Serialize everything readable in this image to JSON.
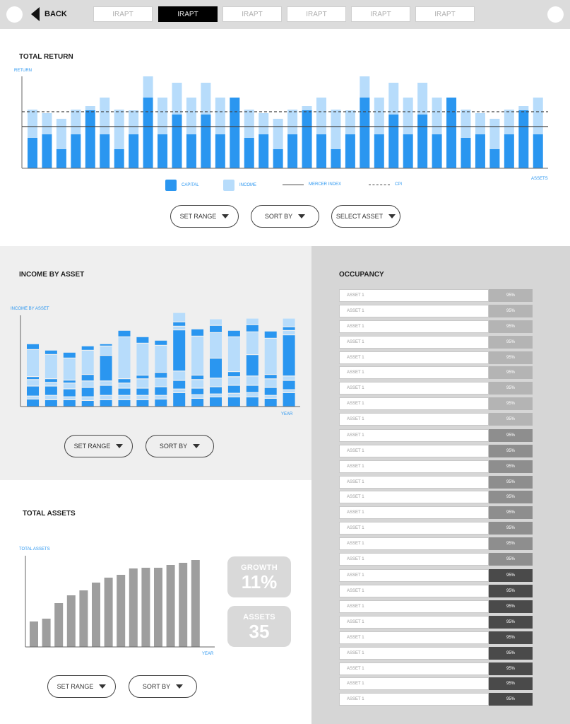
{
  "nav": {
    "back_label": "BACK",
    "tabs": [
      {
        "label": "IRAPT",
        "active": false
      },
      {
        "label": "IRAPT",
        "active": true
      },
      {
        "label": "IRAPT",
        "active": false
      },
      {
        "label": "IRAPT",
        "active": false
      },
      {
        "label": "IRAPT",
        "active": false
      },
      {
        "label": "IRAPT",
        "active": false
      }
    ]
  },
  "total_return": {
    "title": "TOTAL RETURN",
    "legend": {
      "capital": "CAPITAL",
      "income": "INCOME",
      "mercer": "MERCER INDEX",
      "cpi": "CPI"
    },
    "controls": {
      "set_range": "SET RANGE",
      "sort_by": "SORT BY",
      "select_asset": "SELECT ASSET"
    }
  },
  "income_by_asset": {
    "title": "INCOME BY ASSET",
    "controls": {
      "set_range": "SET RANGE",
      "sort_by": "SORT BY"
    }
  },
  "total_assets": {
    "title": "TOTAL ASSETS",
    "growth": {
      "label": "GROWTH",
      "value": "11%"
    },
    "assets": {
      "label": "ASSETS",
      "value": "35"
    },
    "controls": {
      "set_range": "SET RANGE",
      "sort_by": "SORT BY"
    }
  },
  "occupancy": {
    "title": "OCCUPANCY",
    "rows": [
      {
        "name": "ASSET 1",
        "value": "95%",
        "level": 1
      },
      {
        "name": "ASSET 1",
        "value": "95%",
        "level": 1
      },
      {
        "name": "ASSET 1",
        "value": "95%",
        "level": 1
      },
      {
        "name": "ASSET 1",
        "value": "95%",
        "level": 1
      },
      {
        "name": "ASSET 1",
        "value": "95%",
        "level": 1
      },
      {
        "name": "ASSET 1",
        "value": "95%",
        "level": 1
      },
      {
        "name": "ASSET 1",
        "value": "95%",
        "level": 1
      },
      {
        "name": "ASSET 1",
        "value": "95%",
        "level": 1
      },
      {
        "name": "ASSET 1",
        "value": "95%",
        "level": 1
      },
      {
        "name": "ASSET 1",
        "value": "95%",
        "level": 2
      },
      {
        "name": "ASSET 1",
        "value": "95%",
        "level": 2
      },
      {
        "name": "ASSET 1",
        "value": "95%",
        "level": 2
      },
      {
        "name": "ASSET 1",
        "value": "95%",
        "level": 2
      },
      {
        "name": "ASSET 1",
        "value": "95%",
        "level": 2
      },
      {
        "name": "ASSET 1",
        "value": "95%",
        "level": 2
      },
      {
        "name": "ASSET 1",
        "value": "95%",
        "level": 2
      },
      {
        "name": "ASSET 1",
        "value": "95%",
        "level": 2
      },
      {
        "name": "ASSET 1",
        "value": "95%",
        "level": 2
      },
      {
        "name": "ASSET 1",
        "value": "95%",
        "level": 3
      },
      {
        "name": "ASSET 1",
        "value": "95%",
        "level": 3
      },
      {
        "name": "ASSET 1",
        "value": "95%",
        "level": 3
      },
      {
        "name": "ASSET 1",
        "value": "95%",
        "level": 3
      },
      {
        "name": "ASSET 1",
        "value": "95%",
        "level": 3
      },
      {
        "name": "ASSET 1",
        "value": "95%",
        "level": 3
      },
      {
        "name": "ASSET 1",
        "value": "95%",
        "level": 3
      },
      {
        "name": "ASSET 1",
        "value": "95%",
        "level": 3
      },
      {
        "name": "ASSET 1",
        "value": "95%",
        "level": 3
      }
    ],
    "level_colors": {
      "1": "#b4b4b4",
      "2": "#8e8e8e",
      "3": "#4a4a4a"
    },
    "level_text_colors": {
      "1": "#ffffff",
      "2": "#ffffff",
      "3": "#ffffff"
    }
  },
  "colors": {
    "capital": "#2a96f0",
    "income": "#b7dcfb",
    "assets_bar": "#9e9e9e",
    "axis": "#666666",
    "index_line": "#444444"
  },
  "chart_data": [
    {
      "type": "bar",
      "title": "TOTAL RETURN",
      "ylabel": "RETURN",
      "xlabel": "ASSETS",
      "stacked": true,
      "ylim": [
        0,
        130
      ],
      "series": [
        {
          "name": "CAPITAL",
          "values": [
            43,
            48,
            27,
            48,
            82,
            48,
            27,
            48,
            100,
            48,
            76,
            48,
            76,
            48,
            100,
            43,
            48,
            27,
            48,
            82,
            48,
            27,
            48,
            100,
            48,
            76,
            48,
            76,
            48,
            100,
            43,
            48,
            27,
            48,
            82,
            48
          ]
        },
        {
          "name": "INCOME",
          "values": [
            40,
            30,
            43,
            35,
            6,
            52,
            56,
            34,
            30,
            52,
            45,
            52,
            45,
            52,
            0,
            40,
            30,
            43,
            35,
            6,
            52,
            56,
            34,
            30,
            52,
            45,
            52,
            45,
            52,
            0,
            40,
            30,
            43,
            35,
            6,
            52
          ]
        }
      ],
      "reference_lines": [
        {
          "name": "MERCER INDEX",
          "value": 59
        },
        {
          "name": "CPI",
          "value": 80
        }
      ],
      "legend_position": "bottom"
    },
    {
      "type": "bar",
      "title": "INCOME BY ASSET",
      "ylabel": "INCOME BY ASSET",
      "xlabel": "YEAR",
      "stacked": true,
      "ylim": [
        0,
        130
      ],
      "stacks": [
        [
          [
            10,
            "c"
          ],
          [
            3,
            "i"
          ],
          [
            13,
            "c"
          ],
          [
            8,
            "i"
          ],
          [
            3,
            "c"
          ],
          [
            37,
            "i"
          ],
          [
            7,
            "c"
          ]
        ],
        [
          [
            9,
            "c"
          ],
          [
            5,
            "i"
          ],
          [
            12,
            "c"
          ],
          [
            4,
            "i"
          ],
          [
            4,
            "c"
          ],
          [
            33,
            "i"
          ],
          [
            5,
            "c"
          ]
        ],
        [
          [
            9,
            "c"
          ],
          [
            3,
            "i"
          ],
          [
            10,
            "c"
          ],
          [
            7,
            "i"
          ],
          [
            3,
            "c"
          ],
          [
            30,
            "i"
          ],
          [
            7,
            "c"
          ]
        ],
        [
          [
            8,
            "c"
          ],
          [
            4,
            "i"
          ],
          [
            12,
            "c"
          ],
          [
            8,
            "i"
          ],
          [
            8,
            "c"
          ],
          [
            33,
            "i"
          ],
          [
            5,
            "c"
          ]
        ],
        [
          [
            9,
            "c"
          ],
          [
            5,
            "i"
          ],
          [
            13,
            "c"
          ],
          [
            5,
            "i"
          ],
          [
            35,
            "c"
          ],
          [
            12,
            "i"
          ],
          [
            2,
            "c"
          ]
        ],
        [
          [
            9,
            "c"
          ],
          [
            5,
            "i"
          ],
          [
            9,
            "c"
          ],
          [
            6,
            "i"
          ],
          [
            5,
            "c"
          ],
          [
            58,
            "i"
          ],
          [
            8,
            "c"
          ]
        ],
        [
          [
            9,
            "c"
          ],
          [
            5,
            "i"
          ],
          [
            9,
            "c"
          ],
          [
            12,
            "i"
          ],
          [
            4,
            "c"
          ],
          [
            44,
            "i"
          ],
          [
            8,
            "c"
          ]
        ],
        [
          [
            10,
            "c"
          ],
          [
            4,
            "i"
          ],
          [
            11,
            "c"
          ],
          [
            11,
            "i"
          ],
          [
            7,
            "c"
          ],
          [
            37,
            "i"
          ],
          [
            6,
            "c"
          ]
        ],
        [
          [
            19,
            "c"
          ],
          [
            4,
            "i"
          ],
          [
            11,
            "c"
          ],
          [
            12,
            "i"
          ],
          [
            57,
            "c"
          ],
          [
            4,
            "i"
          ],
          [
            5,
            "c"
          ],
          [
            12,
            "i"
          ]
        ],
        [
          [
            11,
            "c"
          ],
          [
            4,
            "i"
          ],
          [
            8,
            "c"
          ],
          [
            11,
            "i"
          ],
          [
            5,
            "c"
          ],
          [
            54,
            "i"
          ],
          [
            9,
            "c"
          ]
        ],
        [
          [
            13,
            "c"
          ],
          [
            3,
            "i"
          ],
          [
            9,
            "c"
          ],
          [
            11,
            "i"
          ],
          [
            27,
            "c"
          ],
          [
            35,
            "i"
          ],
          [
            9,
            "c"
          ],
          [
            8,
            "i"
          ]
        ],
        [
          [
            13,
            "c"
          ],
          [
            4,
            "i"
          ],
          [
            10,
            "c"
          ],
          [
            11,
            "i"
          ],
          [
            6,
            "c"
          ],
          [
            48,
            "i"
          ],
          [
            8,
            "c"
          ]
        ],
        [
          [
            13,
            "c"
          ],
          [
            5,
            "i"
          ],
          [
            9,
            "c"
          ],
          [
            12,
            "i"
          ],
          [
            29,
            "c"
          ],
          [
            31,
            "i"
          ],
          [
            9,
            "c"
          ],
          [
            8,
            "i"
          ]
        ],
        [
          [
            11,
            "c"
          ],
          [
            3,
            "i"
          ],
          [
            10,
            "c"
          ],
          [
            11,
            "i"
          ],
          [
            5,
            "c"
          ],
          [
            50,
            "i"
          ],
          [
            9,
            "c"
          ]
        ],
        [
          [
            19,
            "c"
          ],
          [
            3,
            "i"
          ],
          [
            12,
            "c"
          ],
          [
            5,
            "i"
          ],
          [
            57,
            "c"
          ],
          [
            5,
            "i"
          ],
          [
            4,
            "c"
          ],
          [
            11,
            "i"
          ]
        ]
      ]
    },
    {
      "type": "bar",
      "title": "TOTAL ASSETS",
      "ylabel": "TOTAL ASSETS",
      "xlabel": "YEAR",
      "ylim": [
        0,
        130
      ],
      "values": [
        36,
        40,
        62,
        73,
        80,
        91,
        98,
        102,
        111,
        112,
        112,
        116,
        119,
        123
      ]
    }
  ]
}
